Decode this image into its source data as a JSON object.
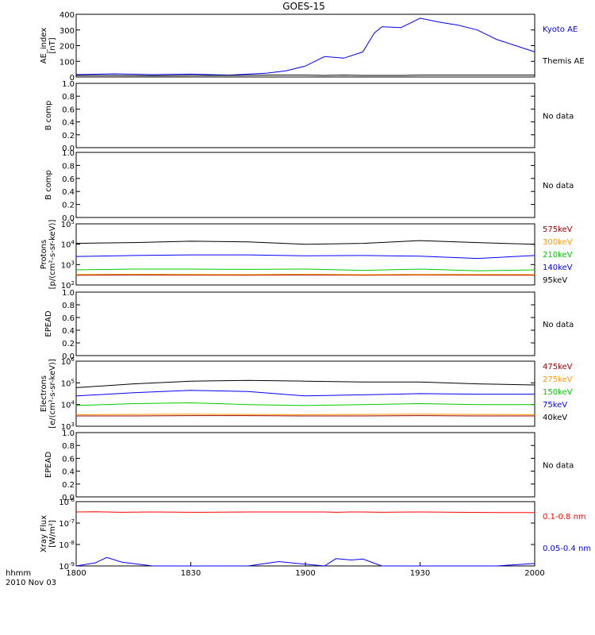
{
  "title": "GOES-15",
  "footer": {
    "line1": "hhmm",
    "line2": "2010 Nov 03"
  },
  "x_ticks": [
    "1800",
    "1830",
    "1900",
    "1930",
    "2000"
  ],
  "chart_data": [
    {
      "type": "line",
      "id": "ae",
      "scale": "linear",
      "ylabel": [
        "AE_index",
        "[nT]"
      ],
      "ylim": [
        0,
        400
      ],
      "yticks": [
        "0",
        "100",
        "200",
        "300",
        "400"
      ],
      "x": [
        "1800",
        "1810",
        "1820",
        "1830",
        "1840",
        "1850",
        "1855",
        "1900",
        "1905",
        "1910",
        "1915",
        "1918",
        "1920",
        "1925",
        "1930",
        "1935",
        "1940",
        "1945",
        "1950",
        "1955",
        "2000"
      ],
      "series": [
        {
          "name": "Kyoto AE",
          "color": "#0000ff",
          "values": [
            15,
            20,
            15,
            18,
            12,
            25,
            40,
            70,
            130,
            120,
            160,
            280,
            320,
            315,
            375,
            350,
            330,
            300,
            240,
            200,
            160
          ]
        },
        {
          "name": "Themis AE",
          "color": "#000000",
          "values": [
            10,
            10,
            8,
            10,
            10,
            12,
            12,
            12,
            10,
            12,
            10,
            10,
            10,
            10,
            12,
            12,
            12,
            12,
            12,
            12,
            12
          ]
        }
      ]
    },
    {
      "type": "line",
      "id": "bcomp1",
      "scale": "linear",
      "ylabel": [
        "B comp"
      ],
      "ylim": [
        0,
        1
      ],
      "yticks": [
        "0.0",
        "0.2",
        "0.4",
        "0.6",
        "0.8",
        "1.0"
      ],
      "series": [],
      "note": "No data"
    },
    {
      "type": "line",
      "id": "bcomp2",
      "scale": "linear",
      "ylabel": [
        "B comp"
      ],
      "ylim": [
        0,
        1
      ],
      "yticks": [
        "0.0",
        "0.2",
        "0.4",
        "0.6",
        "0.8",
        "1.0"
      ],
      "series": [],
      "note": "No data"
    },
    {
      "type": "line",
      "id": "protons",
      "scale": "log",
      "ylabel": [
        "Protons",
        "[p/(cm²-s-sr-keV)]"
      ],
      "ylim": [
        100,
        100000
      ],
      "yticks": [
        {
          "base": "10",
          "exp": "2"
        },
        {
          "base": "10",
          "exp": "3"
        },
        {
          "base": "10",
          "exp": "4"
        },
        {
          "base": "10",
          "exp": "5"
        }
      ],
      "x": [
        "1800",
        "1815",
        "1830",
        "1845",
        "1900",
        "1915",
        "1930",
        "1945",
        "2000"
      ],
      "series": [
        {
          "name": "575keV",
          "color": "#a00000",
          "values": [
            300,
            310,
            305,
            300,
            310,
            300,
            310,
            305,
            300
          ]
        },
        {
          "name": "300keV",
          "color": "#ff9900",
          "values": [
            330,
            335,
            330,
            325,
            335,
            320,
            330,
            330,
            325
          ]
        },
        {
          "name": "210keV",
          "color": "#00cc00",
          "values": [
            550,
            600,
            600,
            580,
            600,
            520,
            600,
            500,
            550
          ]
        },
        {
          "name": "140keV",
          "color": "#0000ff",
          "values": [
            2500,
            2800,
            3000,
            3000,
            2700,
            2800,
            2600,
            2000,
            2800
          ]
        },
        {
          "name": "95keV",
          "color": "#000000",
          "values": [
            11000,
            12000,
            14000,
            13000,
            10000,
            11000,
            15000,
            12000,
            10000
          ]
        }
      ]
    },
    {
      "type": "line",
      "id": "epead1",
      "scale": "linear",
      "ylabel": [
        "EPEAD"
      ],
      "ylim": [
        0,
        1
      ],
      "yticks": [
        "0.0",
        "0.2",
        "0.4",
        "0.6",
        "0.8",
        "1.0"
      ],
      "series": [],
      "note": "No data"
    },
    {
      "type": "line",
      "id": "electrons",
      "scale": "log",
      "ylabel": [
        "Electrons",
        "[e/(cm²-s-sr-keV)]"
      ],
      "ylim": [
        1000,
        1000000
      ],
      "yticks": [
        {
          "base": "10",
          "exp": "3"
        },
        {
          "base": "10",
          "exp": "4"
        },
        {
          "base": "10",
          "exp": "5"
        },
        {
          "base": "10",
          "exp": "6"
        }
      ],
      "x": [
        "1800",
        "1815",
        "1830",
        "1845",
        "1900",
        "1915",
        "1930",
        "1945",
        "2000"
      ],
      "series": [
        {
          "name": "475keV",
          "color": "#a00000",
          "values": [
            3000,
            3000,
            3100,
            3100,
            3000,
            3000,
            3100,
            3000,
            3000
          ]
        },
        {
          "name": "275keV",
          "color": "#ff9900",
          "values": [
            3400,
            3500,
            3600,
            3500,
            3400,
            3500,
            3600,
            3500,
            3400
          ]
        },
        {
          "name": "150keV",
          "color": "#00cc00",
          "values": [
            9000,
            11000,
            12000,
            10000,
            9000,
            10000,
            11000,
            10000,
            10000
          ]
        },
        {
          "name": "75keV",
          "color": "#0000ff",
          "values": [
            25000,
            35000,
            45000,
            40000,
            25000,
            28000,
            32000,
            30000,
            30000
          ]
        },
        {
          "name": "40keV",
          "color": "#000000",
          "values": [
            60000,
            90000,
            120000,
            130000,
            120000,
            110000,
            110000,
            90000,
            80000
          ]
        }
      ]
    },
    {
      "type": "line",
      "id": "epead2",
      "scale": "linear",
      "ylabel": [
        "EPEAD"
      ],
      "ylim": [
        0,
        1
      ],
      "yticks": [
        "0.0",
        "0.2",
        "0.4",
        "0.6",
        "0.8",
        "1.0"
      ],
      "series": [],
      "note": "No data"
    },
    {
      "type": "line",
      "id": "xray",
      "scale": "log",
      "ylabel": [
        "Xray Flux",
        "[W/m²]"
      ],
      "ylim": [
        1e-09,
        1e-06
      ],
      "yticks": [
        {
          "base": "10",
          "exp": "-9"
        },
        {
          "base": "10",
          "exp": "-8"
        },
        {
          "base": "10",
          "exp": "-7"
        },
        {
          "base": "10",
          "exp": "-6"
        }
      ],
      "x": [
        "1800",
        "1805",
        "1808",
        "1812",
        "1820",
        "1830",
        "1845",
        "1853",
        "1858",
        "1905",
        "1908",
        "1912",
        "1915",
        "1920",
        "1930",
        "1940",
        "1950",
        "2000"
      ],
      "series": [
        {
          "name": "0.1-0.8 nm",
          "color": "#ff0000",
          "values": [
            3.3e-07,
            3.4e-07,
            3.3e-07,
            3.2e-07,
            3.3e-07,
            3.2e-07,
            3.3e-07,
            3.3e-07,
            3.3e-07,
            3.3e-07,
            3.2e-07,
            3.3e-07,
            3.3e-07,
            3.2e-07,
            3.3e-07,
            3.2e-07,
            3.1e-07,
            3.1e-07
          ]
        },
        {
          "name": "0.05-0.4 nm",
          "color": "#0000ff",
          "values": [
            1e-09,
            1.4e-09,
            2.5e-09,
            1.5e-09,
            1e-09,
            1e-09,
            1e-09,
            1.6e-09,
            1.3e-09,
            1e-09,
            2.2e-09,
            1.9e-09,
            2.1e-09,
            1e-09,
            1e-09,
            1e-09,
            1e-09,
            1.3e-09
          ]
        }
      ]
    }
  ]
}
